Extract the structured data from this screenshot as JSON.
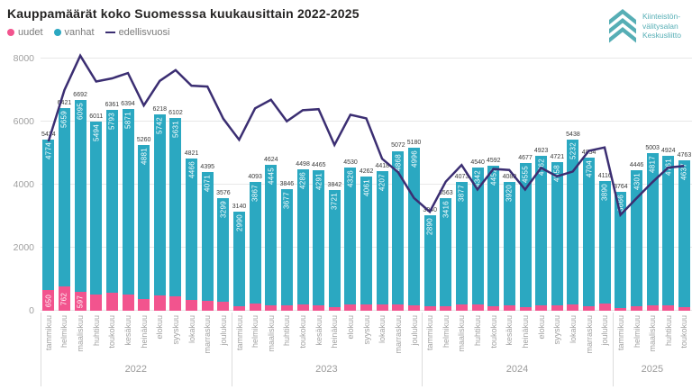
{
  "title": "Kauppamäärät koko Suomesssa kuukausittain 2022-2025",
  "legend": {
    "uudet": "uudet",
    "vanhat": "vanhat",
    "edellisvuosi": "edellisvuosi"
  },
  "logo": {
    "icon": "triple-chevron-up-icon",
    "line1": "Kiinteistön-",
    "line2": "välitysalan",
    "line3": "Keskusliitto"
  },
  "colors": {
    "uudet": "#F2548E",
    "vanhat": "#2BA8C1",
    "edellisvuosi": "#3B2E72",
    "logo_teal": "#56AEB5",
    "grid": "#E8E8E8",
    "axis_text": "#A0A0A0"
  },
  "chart_data": {
    "type": "bar",
    "stacked": true,
    "grid": true,
    "legend_position": "top-left",
    "ylim": [
      0,
      8000
    ],
    "yticks": [
      0,
      2000,
      4000,
      6000,
      8000
    ],
    "series_names": [
      "uudet",
      "vanhat"
    ],
    "line_series_name": "edellisvuosi",
    "years": [
      {
        "year": "2022",
        "months": [
          "tammikuu",
          "helmikuu",
          "maaliskuu",
          "huhtikuu",
          "toukokuu",
          "kesäkuu",
          "heinäkuu",
          "elokuu",
          "syyskuu",
          "lokakuu",
          "marraskuu",
          "joulukuu"
        ],
        "uudet": [
          650,
          762,
          597,
          517,
          568,
          523,
          379,
          476,
          471,
          355,
          324,
          277
        ],
        "vanhat": [
          4774,
          5659,
          6095,
          5494,
          5793,
          5871,
          4881,
          5742,
          5631,
          4466,
          4071,
          3299
        ],
        "totals": [
          5424,
          6421,
          6692,
          6011,
          6361,
          6394,
          5260,
          6218,
          6102,
          4821,
          4395,
          3576
        ],
        "edellisvuosi": [
          5370,
          7000,
          8090,
          7270,
          7370,
          7540,
          6510,
          7290,
          7630,
          7140,
          7110,
          6090
        ],
        "uudet_label_shown": [
          true,
          true,
          true,
          false,
          false,
          false,
          false,
          false,
          false,
          false,
          false,
          false
        ]
      },
      {
        "year": "2023",
        "months": [
          "tammikuu",
          "helmikuu",
          "maaliskuu",
          "huhtikuu",
          "toukokuu",
          "kesäkuu",
          "heinäkuu",
          "elokuu",
          "syyskuu",
          "lokakuu",
          "marraskuu",
          "joulukuu"
        ],
        "uudet": [
          150,
          226,
          179,
          169,
          212,
          174,
          121,
          204,
          201,
          211,
          204,
          184
        ],
        "vanhat": [
          2990,
          3867,
          4445,
          3677,
          4286,
          4291,
          3721,
          4326,
          4061,
          4207,
          4868,
          4996
        ],
        "totals": [
          3140,
          4093,
          4624,
          3846,
          4498,
          4465,
          3842,
          4530,
          4262,
          4418,
          5072,
          5180
        ],
        "edellisvuosi": [
          5424,
          6421,
          6692,
          6011,
          6361,
          6394,
          5260,
          6218,
          6102,
          4821,
          4395,
          3576
        ],
        "uudet_label_shown": [
          false,
          false,
          false,
          false,
          false,
          false,
          false,
          false,
          false,
          false,
          false,
          false
        ]
      },
      {
        "year": "2024",
        "months": [
          "tammikuu",
          "helmikuu",
          "maaliskuu",
          "huhtikuu",
          "toukokuu",
          "kesäkuu",
          "heinäkuu",
          "elokuu",
          "syyskuu",
          "lokakuu",
          "marraskuu",
          "joulukuu"
        ],
        "uudet": [
          150,
          147,
          196,
          198,
          140,
          160,
          122,
          161,
          163,
          206,
          150,
          226
        ],
        "vanhat": [
          2890,
          3416,
          3877,
          4342,
          4452,
          3920,
          4555,
          4762,
          4558,
          5232,
          4704,
          3890
        ],
        "totals": [
          3040,
          3563,
          4073,
          4540,
          4592,
          4080,
          4677,
          4923,
          4721,
          5438,
          4854,
          4116
        ],
        "edellisvuosi": [
          3140,
          4093,
          4624,
          3846,
          4498,
          4465,
          3842,
          4530,
          4262,
          4418,
          5072,
          5180
        ],
        "uudet_label_shown": [
          false,
          false,
          false,
          false,
          false,
          false,
          false,
          false,
          false,
          false,
          false,
          false
        ]
      },
      {
        "year": "2025",
        "months": [
          "tammikuu",
          "helmikuu",
          "maaliskuu",
          "huhtikuu",
          "toukokuu"
        ],
        "uudet": [
          98,
          145,
          186,
          163,
          126
        ],
        "vanhat": [
          3666,
          4301,
          4817,
          4761,
          4637
        ],
        "totals": [
          3764,
          4446,
          5003,
          4924,
          4763
        ],
        "edellisvuosi": [
          3040,
          3563,
          4073,
          4540,
          4592
        ],
        "uudet_label_shown": [
          false,
          false,
          false,
          false,
          false
        ]
      }
    ]
  }
}
